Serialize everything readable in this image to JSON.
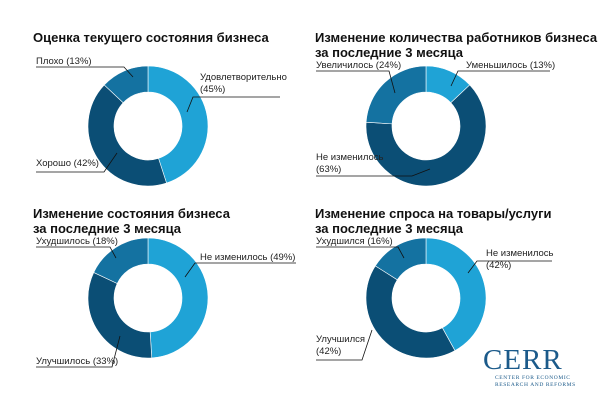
{
  "colors": {
    "light": "#1fa3d6",
    "mid": "#1472a1",
    "dark": "#0b4e75"
  },
  "chart_data": [
    {
      "type": "pie",
      "donut": true,
      "title_lines": [
        "Оценка текущего состояния бизнеса"
      ],
      "slices": [
        {
          "label": "Удовлетворительно",
          "value": 45,
          "label_lines": [
            "Удовлетворительно",
            "(45%)"
          ],
          "color": "#1fa3d6"
        },
        {
          "label": "Хорошо",
          "value": 42,
          "label_lines": [
            "Хорошо (42%)"
          ],
          "color": "#0b4e75"
        },
        {
          "label": "Плохо",
          "value": 13,
          "label_lines": [
            "Плохо (13%)"
          ],
          "color": "#1472a1"
        }
      ]
    },
    {
      "type": "pie",
      "donut": true,
      "title_lines": [
        "Изменение количества работников бизнеса",
        "за последние 3 месяца"
      ],
      "slices": [
        {
          "label": "Уменьшилось",
          "value": 13,
          "label_lines": [
            "Уменьшилось (13%)"
          ],
          "color": "#1fa3d6"
        },
        {
          "label": "Не изменилось",
          "value": 63,
          "label_lines": [
            "Не изменилось",
            "(63%)"
          ],
          "color": "#0b4e75"
        },
        {
          "label": "Увеличилось",
          "value": 24,
          "label_lines": [
            "Увеличилось (24%)"
          ],
          "color": "#1472a1"
        }
      ]
    },
    {
      "type": "pie",
      "donut": true,
      "title_lines": [
        "Изменение состояния бизнеса",
        "за последние 3 месяца"
      ],
      "slices": [
        {
          "label": "Не изменилось",
          "value": 49,
          "label_lines": [
            "Не изменилось (49%)"
          ],
          "color": "#1fa3d6"
        },
        {
          "label": "Улучшилось",
          "value": 33,
          "label_lines": [
            "Улучшилось (33%)"
          ],
          "color": "#0b4e75"
        },
        {
          "label": "Ухудшилось",
          "value": 18,
          "label_lines": [
            "Ухудшилось (18%)"
          ],
          "color": "#1472a1"
        }
      ]
    },
    {
      "type": "pie",
      "donut": true,
      "title_lines": [
        "Изменение спроса на товары/услуги",
        "за последние 3 месяца"
      ],
      "slices": [
        {
          "label": "Не изменилось",
          "value": 42,
          "label_lines": [
            "Не изменилось",
            "(42%)"
          ],
          "color": "#1fa3d6"
        },
        {
          "label": "Улучшился",
          "value": 42,
          "label_lines": [
            "Улучшился",
            "(42%)"
          ],
          "color": "#0b4e75"
        },
        {
          "label": "Ухудшился",
          "value": 16,
          "label_lines": [
            "Ухудшился (16%)"
          ],
          "color": "#1472a1"
        }
      ]
    }
  ],
  "logo": {
    "name": "CERR",
    "sub_lines": [
      "CENTER FOR ECONOMIC",
      "RESEARCH AND REFORMS"
    ]
  }
}
